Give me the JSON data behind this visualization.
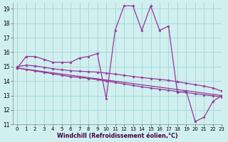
{
  "background_color": "#d0f0f0",
  "grid_color": "#a8d8d8",
  "line_color": "#993399",
  "marker": "*",
  "xlabel": "Windchill (Refroidissement éolien,°C)",
  "xlim": [
    -0.5,
    23
  ],
  "ylim": [
    11,
    19.4
  ],
  "yticks": [
    11,
    12,
    13,
    14,
    15,
    16,
    17,
    18,
    19
  ],
  "xticks": [
    0,
    1,
    2,
    3,
    4,
    5,
    6,
    7,
    8,
    9,
    10,
    11,
    12,
    13,
    14,
    15,
    16,
    17,
    18,
    19,
    20,
    21,
    22,
    23
  ],
  "series": [
    {
      "x": [
        0,
        1,
        2,
        3,
        4,
        5,
        6,
        7,
        8,
        9,
        10,
        11,
        12,
        13,
        14,
        15,
        16,
        17,
        18,
        19,
        20,
        21,
        22,
        23
      ],
      "y": [
        14.9,
        15.7,
        15.7,
        15.5,
        15.3,
        15.3,
        15.3,
        15.6,
        15.7,
        15.9,
        12.8,
        17.5,
        19.2,
        19.2,
        17.5,
        19.2,
        17.5,
        17.8,
        13.2,
        13.3,
        11.2,
        11.5,
        12.6,
        13.0
      ],
      "has_markers": true
    },
    {
      "x": [
        0,
        1,
        2,
        3,
        4,
        5,
        6,
        7,
        8,
        9,
        10,
        11,
        12,
        13,
        14,
        15,
        16,
        17,
        18,
        19,
        20,
        21,
        22,
        23
      ],
      "y": [
        15.0,
        15.1,
        15.05,
        14.95,
        14.85,
        14.78,
        14.72,
        14.68,
        14.65,
        14.62,
        14.55,
        14.48,
        14.4,
        14.32,
        14.24,
        14.18,
        14.12,
        14.05,
        13.95,
        13.85,
        13.75,
        13.65,
        13.52,
        13.3
      ],
      "has_markers": true
    },
    {
      "x": [
        0,
        1,
        2,
        3,
        4,
        5,
        6,
        7,
        8,
        9,
        10,
        11,
        12,
        13,
        14,
        15,
        16,
        17,
        18,
        19,
        20,
        21,
        22,
        23
      ],
      "y": [
        14.9,
        14.8,
        14.7,
        14.6,
        14.5,
        14.4,
        14.3,
        14.25,
        14.18,
        14.1,
        14.0,
        13.9,
        13.8,
        13.7,
        13.6,
        13.52,
        13.44,
        13.36,
        13.28,
        13.2,
        13.12,
        13.05,
        12.98,
        12.9
      ],
      "has_markers": true
    },
    {
      "x": [
        0,
        23
      ],
      "y": [
        14.9,
        13.0
      ],
      "has_markers": false
    }
  ]
}
